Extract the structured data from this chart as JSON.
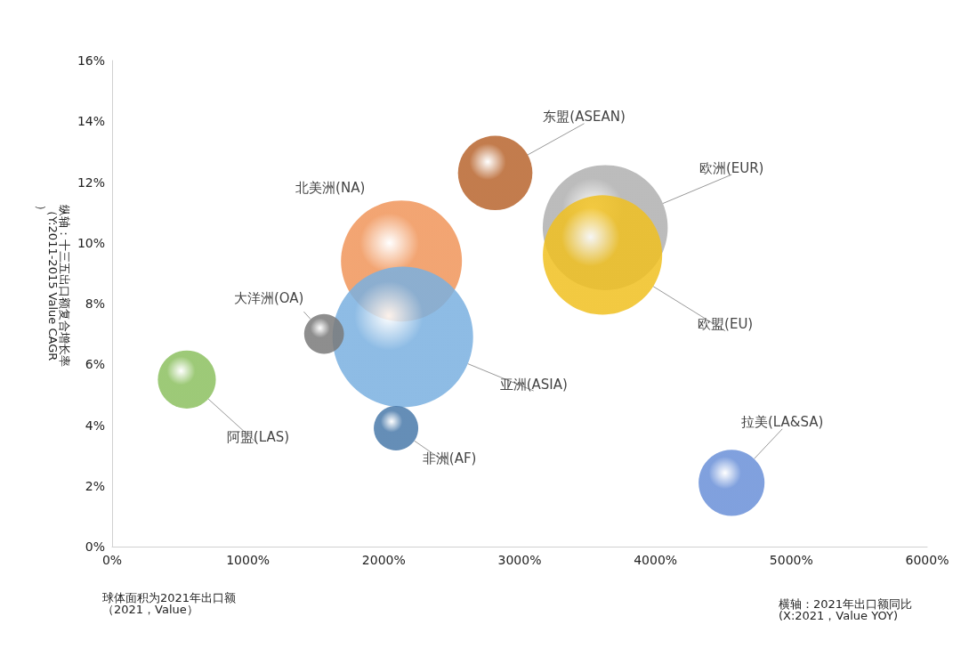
{
  "chart_data": {
    "type": "bubble",
    "xlabel": "横轴：2021年出口额同比\n(X:2021，Value YOY)",
    "ylabel": "纵轴：十三五出口额复合增长率（Y:2011-2015 Value CAGR）",
    "annotations": [
      "球体面积为2021年出口额（2021，Value）"
    ],
    "xlim": [
      0,
      6000
    ],
    "xticks": [
      {
        "value": 0,
        "label": "0%"
      },
      {
        "value": 1000,
        "label": "1000%"
      },
      {
        "value": 2000,
        "label": "2000%"
      },
      {
        "value": 3000,
        "label": "3000%"
      },
      {
        "value": 4000,
        "label": "4000%"
      },
      {
        "value": 5000,
        "label": "5000%"
      },
      {
        "value": 6000,
        "label": "6000%"
      }
    ],
    "ylim": [
      0,
      16
    ],
    "yticks": [
      {
        "value": 0,
        "label": "0%"
      },
      {
        "value": 2,
        "label": "2%"
      },
      {
        "value": 4,
        "label": "4%"
      },
      {
        "value": 6,
        "label": "6%"
      },
      {
        "value": 8,
        "label": "8%"
      },
      {
        "value": 10,
        "label": "10%"
      },
      {
        "value": 12,
        "label": "12%"
      },
      {
        "value": 14,
        "label": "14%"
      },
      {
        "value": 16,
        "label": "16%"
      }
    ],
    "grid": false,
    "legend": false,
    "series": [
      {
        "name": "欧洲(EUR)",
        "color": "#b0b0b0",
        "x": [
          3630
        ],
        "values": [
          10.5
        ],
        "sizes": [
          0.79
        ]
      },
      {
        "name": "欧盟(EU)",
        "color": "#f0c020",
        "x": [
          3610
        ],
        "values": [
          9.6
        ],
        "sizes": [
          0.72
        ]
      },
      {
        "name": "北美洲(NA)",
        "color": "#f0955a",
        "x": [
          2130
        ],
        "values": [
          9.4
        ],
        "sizes": [
          0.74
        ]
      },
      {
        "name": "亚洲(ASIA)",
        "color": "#7ab0e0",
        "x": [
          2140
        ],
        "values": [
          6.9
        ],
        "sizes": [
          1
        ]
      },
      {
        "name": "东盟(ASEAN)",
        "color": "#b8652e",
        "x": [
          2820
        ],
        "values": [
          12.3
        ],
        "sizes": [
          0.28
        ]
      },
      {
        "name": "大洋洲(OA)",
        "color": "#7a7a7a",
        "x": [
          1560
        ],
        "values": [
          7.0
        ],
        "sizes": [
          0.08
        ]
      },
      {
        "name": "阿盟(LAS)",
        "color": "#8cc060",
        "x": [
          550
        ],
        "values": [
          5.5
        ],
        "sizes": [
          0.17
        ]
      },
      {
        "name": "非洲(AF)",
        "color": "#4a7aaa",
        "x": [
          2090
        ],
        "values": [
          3.9
        ],
        "sizes": [
          0.1
        ]
      },
      {
        "name": "拉美(LA&SA)",
        "color": "#6a90d8",
        "x": [
          4560
        ],
        "values": [
          2.1
        ],
        "sizes": [
          0.22
        ]
      }
    ]
  }
}
